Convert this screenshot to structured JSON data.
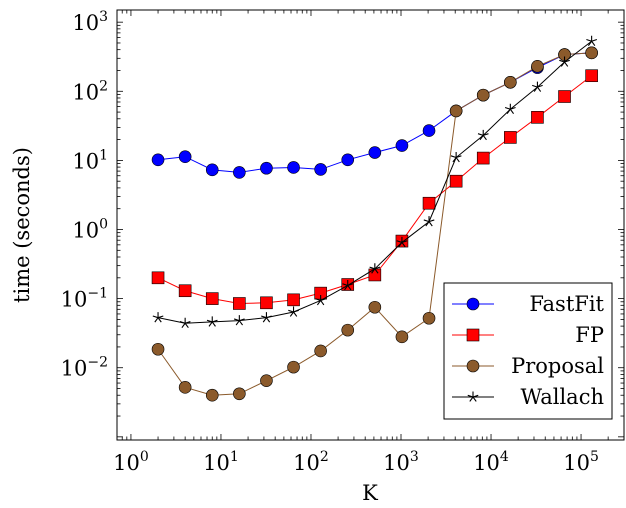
{
  "chart_data": {
    "type": "line",
    "xlabel": "K",
    "ylabel": "time (seconds)",
    "xscale": "log",
    "yscale": "log",
    "xlim": [
      0.7,
      300000
    ],
    "ylim": [
      0.0009,
      1500
    ],
    "grid": false,
    "legend_position": "bottom-right",
    "x_ticks": [
      {
        "base": "10",
        "exp": "0",
        "value": 1
      },
      {
        "base": "10",
        "exp": "1",
        "value": 10
      },
      {
        "base": "10",
        "exp": "2",
        "value": 100
      },
      {
        "base": "10",
        "exp": "3",
        "value": 1000
      },
      {
        "base": "10",
        "exp": "4",
        "value": 10000
      },
      {
        "base": "10",
        "exp": "5",
        "value": 100000
      }
    ],
    "y_ticks": [
      {
        "base": "10",
        "exp": "−2",
        "value": 0.01
      },
      {
        "base": "10",
        "exp": "−1",
        "value": 0.1
      },
      {
        "base": "10",
        "exp": "0",
        "value": 1
      },
      {
        "base": "10",
        "exp": "1",
        "value": 10
      },
      {
        "base": "10",
        "exp": "2",
        "value": 100
      },
      {
        "base": "10",
        "exp": "3",
        "value": 1000
      }
    ],
    "x": [
      2,
      4,
      8,
      16,
      32,
      64,
      128,
      256,
      512,
      1024,
      2048,
      4096,
      8192,
      16384,
      32768,
      65536,
      131072
    ],
    "series": [
      {
        "name": "FastFit",
        "color": "#0000ff",
        "marker": "circle",
        "values": [
          10.2,
          11.3,
          7.3,
          6.7,
          7.7,
          7.9,
          7.4,
          10.2,
          13.0,
          16.4,
          27.0,
          52.0,
          88.0,
          135.0,
          220.0,
          340.0,
          360.0
        ]
      },
      {
        "name": "FP",
        "color": "#ff0000",
        "marker": "square",
        "values": [
          0.2,
          0.13,
          0.1,
          0.085,
          0.087,
          0.096,
          0.12,
          0.16,
          0.22,
          0.68,
          2.4,
          5.0,
          10.8,
          21.5,
          42.0,
          84.0,
          168.0
        ]
      },
      {
        "name": "Proposal",
        "color": "#8b5a2b",
        "marker": "circle",
        "values": [
          0.0185,
          0.0052,
          0.004,
          0.0042,
          0.0065,
          0.0102,
          0.0175,
          0.035,
          0.075,
          0.028,
          0.052,
          52.0,
          88.0,
          135.0,
          230.0,
          340.0,
          360.0
        ]
      },
      {
        "name": "Wallach",
        "color": "#000000",
        "marker": "star",
        "values": [
          0.053,
          0.044,
          0.046,
          0.048,
          0.053,
          0.064,
          0.094,
          0.155,
          0.27,
          0.65,
          1.3,
          11.0,
          23.0,
          55.0,
          115.0,
          265.0,
          530.0
        ]
      }
    ]
  }
}
